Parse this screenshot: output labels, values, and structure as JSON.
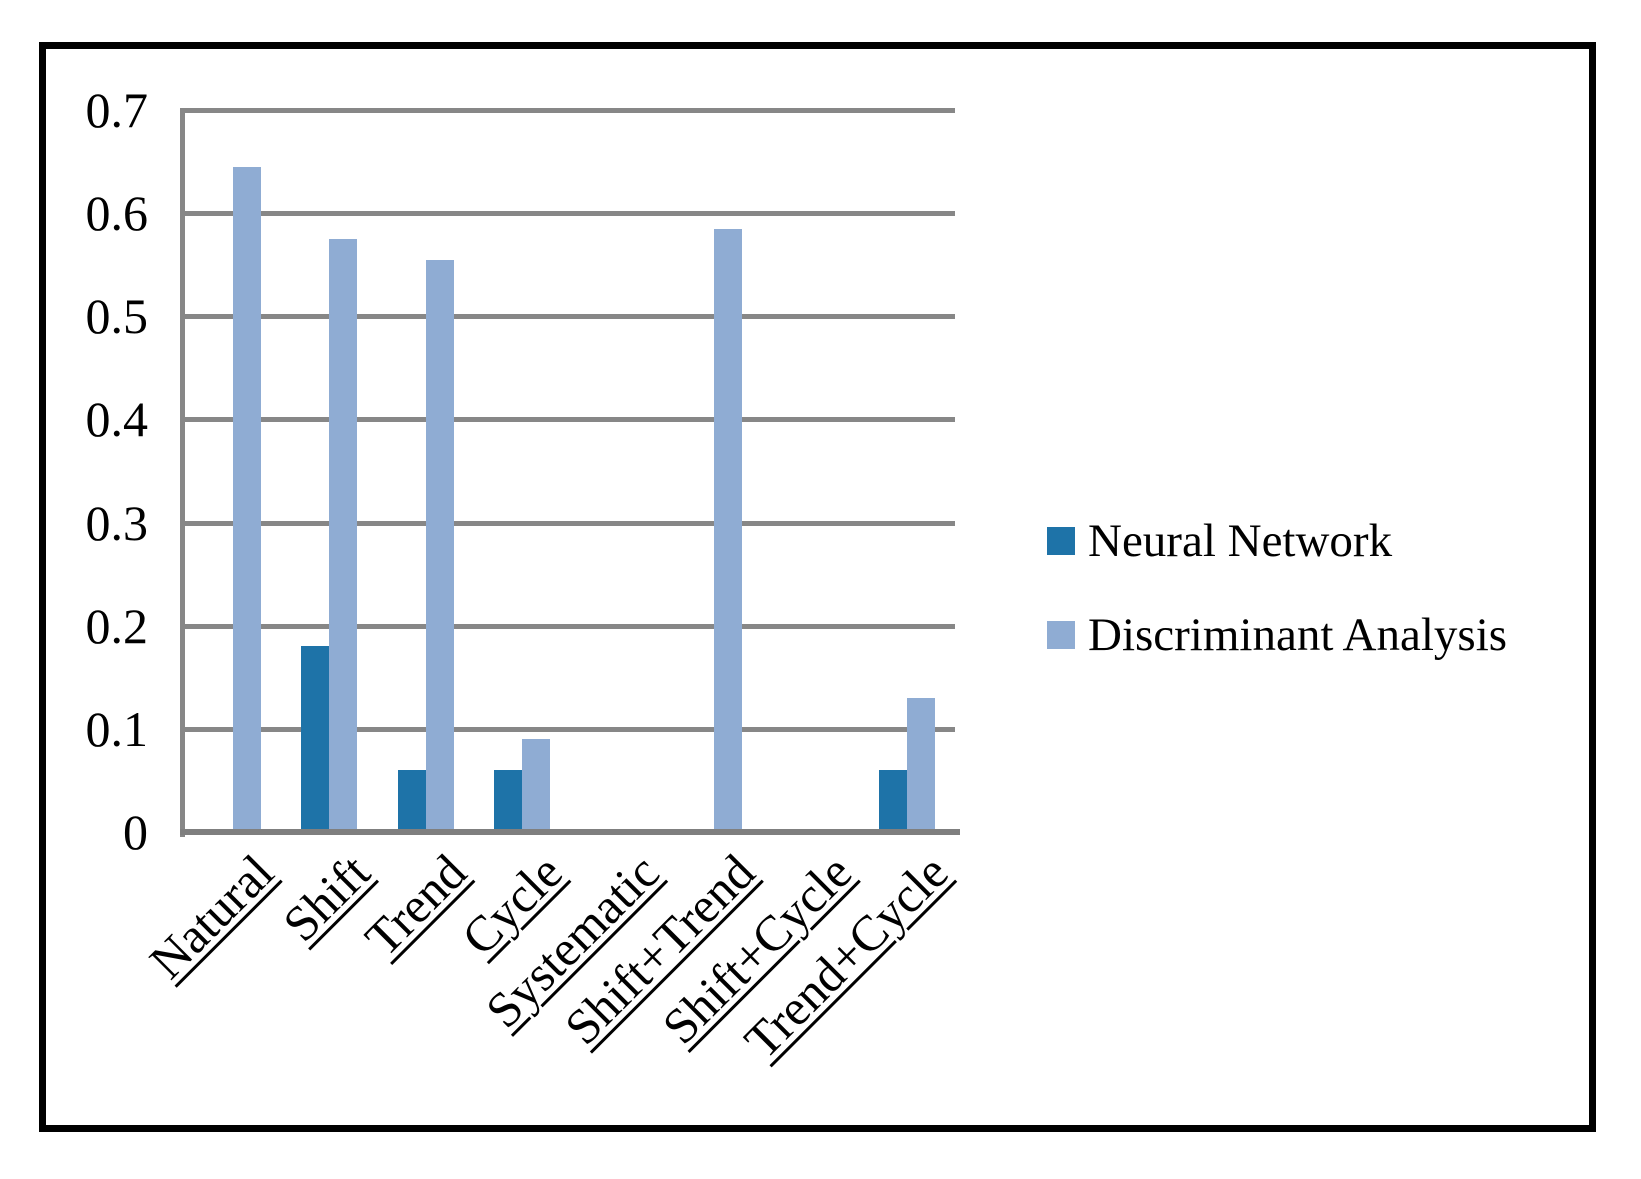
{
  "chart_data": {
    "type": "bar",
    "title": "",
    "xlabel": "",
    "ylabel": "",
    "categories": [
      "Natural",
      "Shift",
      "Trend",
      "Cycle",
      "Systematic",
      "Shift+Trend",
      "Shift+Cycle",
      "Trend+Cycle"
    ],
    "series": [
      {
        "name": "Neural Network",
        "color": "#1E73A8",
        "values": [
          0,
          0.18,
          0.06,
          0.06,
          0,
          0,
          0,
          0.06
        ]
      },
      {
        "name": "Discriminant Analysis",
        "color": "#8FACD3",
        "values": [
          0.645,
          0.575,
          0.555,
          0.09,
          0,
          0.585,
          0,
          0.13
        ]
      }
    ],
    "ylim": [
      0,
      0.7
    ],
    "ytick_labels": [
      "0.7",
      "0.6",
      "0.5",
      "0.4",
      "0.3",
      "0.2",
      "0.1",
      "0"
    ],
    "grid": true,
    "legend_position": "right",
    "x_tick_rotation_deg": 45,
    "x_ticks_underlined": true,
    "colors": {
      "gridline": "#878787",
      "axis": "#7F7F7F",
      "frame": "#000000",
      "background": "#FFFFFF"
    }
  }
}
